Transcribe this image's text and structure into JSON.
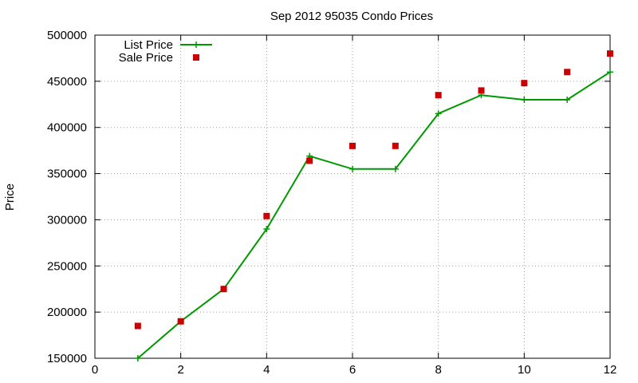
{
  "chart_data": {
    "type": "line",
    "title": "Sep 2012 95035 Condo Prices",
    "xlabel": "",
    "ylabel": "Price",
    "xlim": [
      0,
      12
    ],
    "ylim": [
      150000,
      500000
    ],
    "xticks": [
      0,
      2,
      4,
      6,
      8,
      10,
      12
    ],
    "yticks": [
      150000,
      200000,
      250000,
      300000,
      350000,
      400000,
      450000,
      500000
    ],
    "grid": true,
    "legend_position": "top-left",
    "series": [
      {
        "name": "List Price",
        "style": "line-with-plus-markers",
        "color": "#009900",
        "x": [
          1,
          2,
          3,
          4,
          5,
          6,
          7,
          8,
          9,
          10,
          11,
          12
        ],
        "y": [
          150000,
          190000,
          225000,
          290000,
          369000,
          355000,
          355000,
          415000,
          435000,
          430000,
          430000,
          460000
        ]
      },
      {
        "name": "Sale Price",
        "style": "square-points",
        "color": "#cc0000",
        "x": [
          1,
          2,
          3,
          4,
          5,
          6,
          7,
          8,
          9,
          10,
          11,
          12
        ],
        "y": [
          185000,
          190000,
          225000,
          304000,
          364000,
          380000,
          380000,
          435000,
          440000,
          448000,
          460000,
          480000
        ]
      }
    ]
  }
}
